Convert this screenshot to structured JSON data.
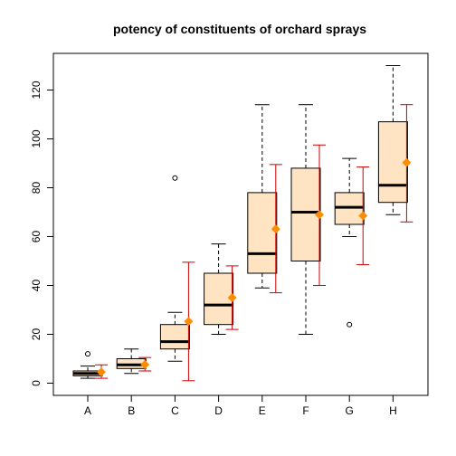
{
  "chart_data": {
    "type": "box",
    "title": "potency of constituents of orchard sprays",
    "xlabel": "",
    "ylabel": "",
    "categories": [
      "A",
      "B",
      "C",
      "D",
      "E",
      "F",
      "G",
      "H"
    ],
    "ylim": [
      -5,
      135
    ],
    "yticks": [
      0,
      20,
      40,
      60,
      80,
      100,
      120
    ],
    "grid": false,
    "box_fill": "#ffe4c4",
    "median_color": "#000000",
    "mean_color": "#ff8c00",
    "error_bar_color": "#cc0000",
    "boxes": [
      {
        "min": 2,
        "q1": 3,
        "median": 4,
        "q3": 5,
        "max": 7,
        "outliers": [
          12
        ]
      },
      {
        "min": 4,
        "q1": 6,
        "median": 7.5,
        "q3": 10,
        "max": 14,
        "outliers": []
      },
      {
        "min": 9,
        "q1": 14,
        "median": 17,
        "q3": 24,
        "max": 29,
        "outliers": [
          84
        ]
      },
      {
        "min": 20,
        "q1": 24,
        "median": 32,
        "q3": 45,
        "max": 57,
        "outliers": []
      },
      {
        "min": 39,
        "q1": 45,
        "median": 53,
        "q3": 78,
        "max": 114,
        "outliers": []
      },
      {
        "min": 20,
        "q1": 50,
        "median": 70,
        "q3": 88,
        "max": 114,
        "outliers": []
      },
      {
        "min": 60,
        "q1": 65,
        "median": 72,
        "q3": 78,
        "max": 92,
        "outliers": [
          24
        ]
      },
      {
        "min": 69,
        "q1": 74,
        "median": 81,
        "q3": 107,
        "max": 130,
        "outliers": []
      }
    ],
    "means": [
      4.6,
      7.6,
      25.3,
      35,
      63.1,
      69,
      68.5,
      90.3
    ],
    "error_bars": [
      {
        "low": 2,
        "high": 7.5
      },
      {
        "low": 5,
        "high": 10.5
      },
      {
        "low": 1,
        "high": 49.5
      },
      {
        "low": 22,
        "high": 48
      },
      {
        "low": 37,
        "high": 89.5
      },
      {
        "low": 40,
        "high": 97.5
      },
      {
        "low": 48.5,
        "high": 88.5
      },
      {
        "low": 66,
        "high": 114
      }
    ]
  }
}
